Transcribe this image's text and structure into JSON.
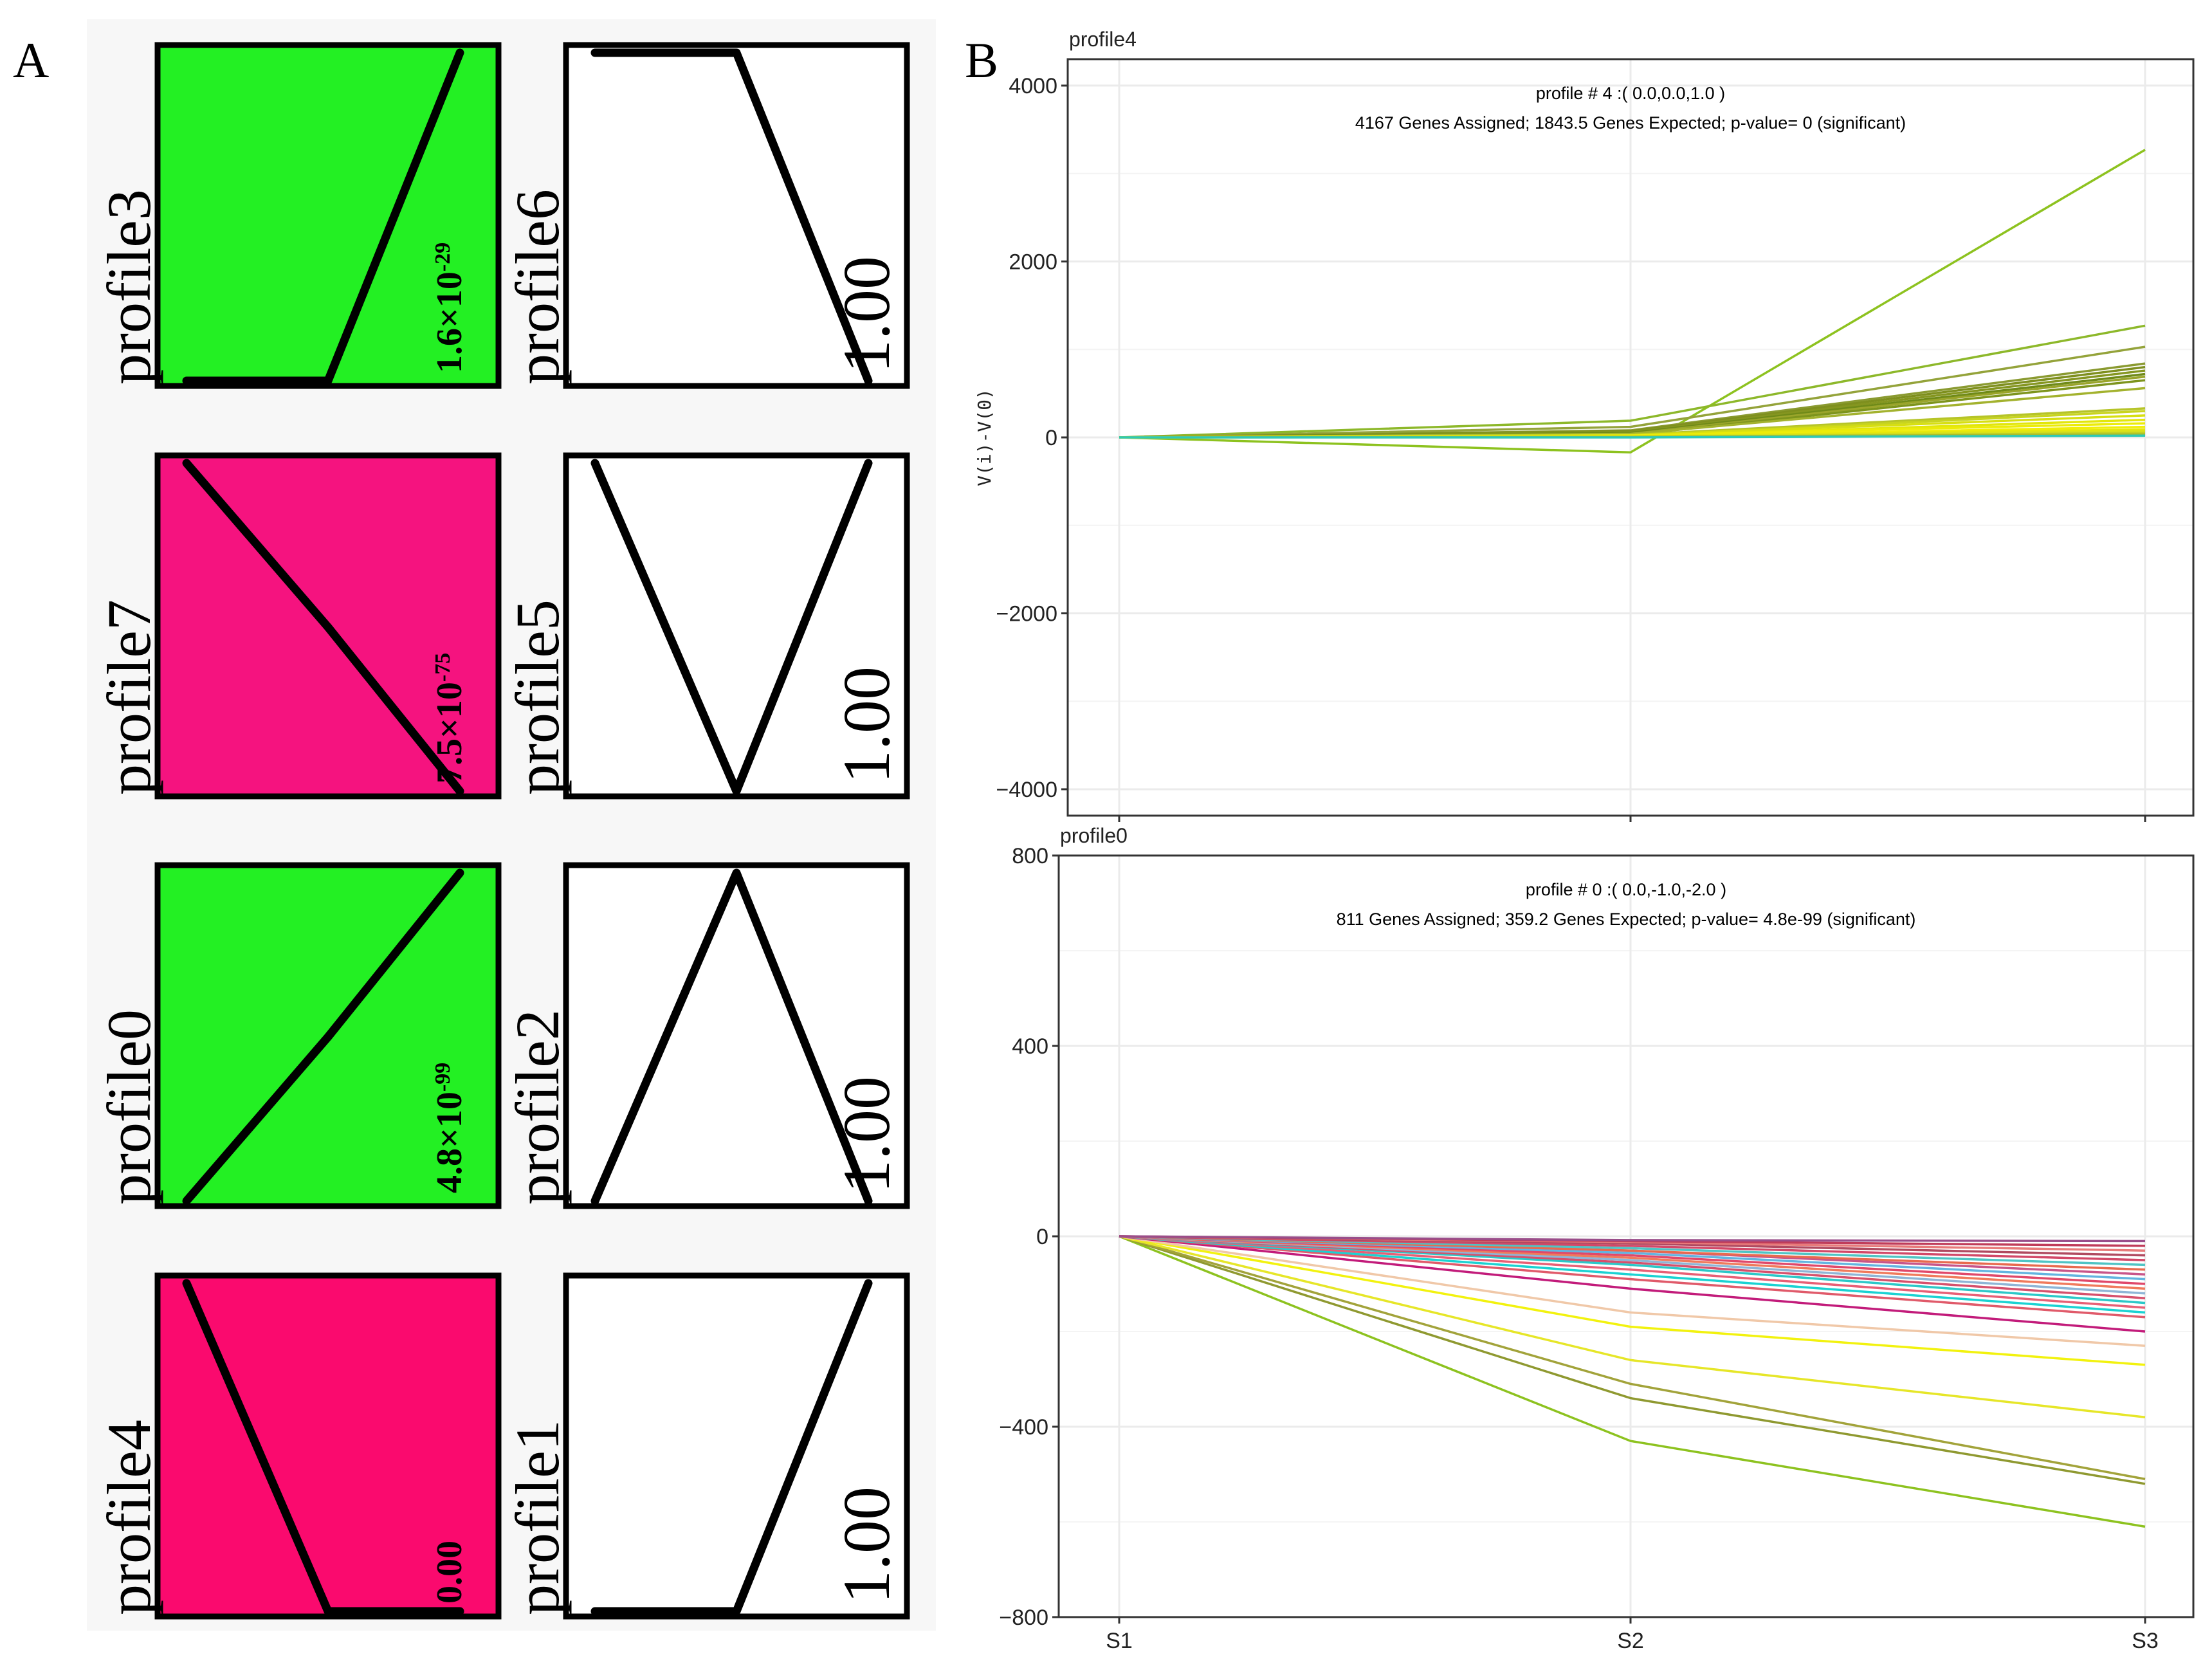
{
  "panel_a": {
    "letter": "A",
    "tiles": [
      {
        "label": "profile3",
        "color": "#23f023",
        "pvalue": "1.6×10",
        "pexp": "-29",
        "shape": [
          0,
          0,
          1
        ]
      },
      {
        "label": "profile6",
        "color": "#ffffff",
        "pvalue": "1.00",
        "pexp": "",
        "shape": [
          1,
          1,
          0
        ]
      },
      {
        "label": "profile7",
        "color": "#f5137f",
        "pvalue": "7.5×10",
        "pexp": "-75",
        "shape": [
          1,
          0.5,
          0
        ]
      },
      {
        "label": "profile5",
        "color": "#ffffff",
        "pvalue": "1.00",
        "pexp": "",
        "shape": [
          1,
          0,
          1
        ]
      },
      {
        "label": "profile0",
        "color": "#23f023",
        "pvalue": "4.8×10",
        "pexp": "-99",
        "shape": [
          0,
          0.5,
          1
        ]
      },
      {
        "label": "profile2",
        "color": "#ffffff",
        "pvalue": "1.00",
        "pexp": "",
        "shape": [
          0,
          1,
          0
        ]
      },
      {
        "label": "profile4",
        "color": "#fa0a6e",
        "pvalue": "0.00",
        "pexp": "",
        "shape": [
          1,
          0,
          0
        ]
      },
      {
        "label": "profile1",
        "color": "#ffffff",
        "pvalue": "1.00",
        "pexp": "",
        "shape": [
          0,
          0,
          1
        ]
      }
    ]
  },
  "panel_b": {
    "letter": "B"
  },
  "chart_data": [
    {
      "type": "line",
      "name": "profile4",
      "title": "profile # 4 :( 0.0,0.0,1.0 )",
      "subtitle": "4167 Genes Assigned; 1843.5 Genes Expected; p-value= 0 (significant)",
      "ylabel": "V(i)-V(0)",
      "x": [
        "S1",
        "S2",
        "S3"
      ],
      "ylim": [
        -4300,
        4300
      ],
      "yticks": [
        4000,
        2000,
        0,
        -2000,
        -4000
      ],
      "ytick_labels": [
        "4000",
        "2000",
        "0",
        "−2000",
        "−4000"
      ],
      "series": [
        {
          "color": "#8dc21f",
          "values": [
            0,
            -170,
            3270
          ]
        },
        {
          "color": "#8db82a",
          "values": [
            0,
            190,
            1270
          ]
        },
        {
          "color": "#94a33a",
          "values": [
            0,
            120,
            1030
          ]
        },
        {
          "color": "#8a9a30",
          "values": [
            0,
            80,
            840
          ]
        },
        {
          "color": "#7e8f1e",
          "values": [
            0,
            70,
            800
          ]
        },
        {
          "color": "#859620",
          "values": [
            0,
            60,
            760
          ]
        },
        {
          "color": "#6f8a18",
          "values": [
            0,
            50,
            720
          ]
        },
        {
          "color": "#9aa52b",
          "values": [
            0,
            40,
            690
          ]
        },
        {
          "color": "#7d941c",
          "values": [
            0,
            30,
            650
          ]
        },
        {
          "color": "#a3b22e",
          "values": [
            0,
            40,
            560
          ]
        },
        {
          "color": "#b6c428",
          "values": [
            0,
            30,
            330
          ]
        },
        {
          "color": "#c8d420",
          "values": [
            0,
            20,
            300
          ]
        },
        {
          "color": "#d7df12",
          "values": [
            0,
            25,
            250
          ]
        },
        {
          "color": "#e2e60b",
          "values": [
            0,
            15,
            200
          ]
        },
        {
          "color": "#ecec08",
          "values": [
            0,
            20,
            160
          ]
        },
        {
          "color": "#f0ee0a",
          "values": [
            0,
            10,
            120
          ]
        },
        {
          "color": "#e6e80a",
          "values": [
            0,
            15,
            90
          ]
        },
        {
          "color": "#d9e21a",
          "values": [
            0,
            10,
            70
          ]
        },
        {
          "color": "#c2d125",
          "values": [
            0,
            5,
            50
          ]
        },
        {
          "color": "#aabd2a",
          "values": [
            0,
            5,
            35
          ]
        },
        {
          "color": "#2fc9b6",
          "values": [
            0,
            0,
            20
          ]
        }
      ]
    },
    {
      "type": "line",
      "name": "profile0",
      "title": "profile # 0 :( 0.0,-1.0,-2.0 )",
      "subtitle": "811 Genes Assigned; 359.2 Genes Expected; p-value= 4.8e-99 (significant)",
      "ylabel": "",
      "x": [
        "S1",
        "S2",
        "S3"
      ],
      "ylim": [
        -800,
        800
      ],
      "yticks": [
        800,
        400,
        0,
        -400,
        -800
      ],
      "ytick_labels": [
        "800",
        "400",
        "0",
        "−400",
        "−800"
      ],
      "series": [
        {
          "color": "#8dc21f",
          "values": [
            0,
            -430,
            -610
          ]
        },
        {
          "color": "#8f9930",
          "values": [
            0,
            -340,
            -520
          ]
        },
        {
          "color": "#a2a33a",
          "values": [
            0,
            -310,
            -510
          ]
        },
        {
          "color": "#e6e628",
          "values": [
            0,
            -260,
            -380
          ]
        },
        {
          "color": "#f2f20e",
          "values": [
            0,
            -190,
            -270
          ]
        },
        {
          "color": "#f0c8a8",
          "values": [
            0,
            -160,
            -230
          ]
        },
        {
          "color": "#c21b7a",
          "values": [
            0,
            -110,
            -200
          ]
        },
        {
          "color": "#e05a6a",
          "values": [
            0,
            -90,
            -170
          ]
        },
        {
          "color": "#1ad2d2",
          "values": [
            0,
            -80,
            -160
          ]
        },
        {
          "color": "#e85f75",
          "values": [
            0,
            -70,
            -150
          ]
        },
        {
          "color": "#2bc8c8",
          "values": [
            0,
            -60,
            -140
          ]
        },
        {
          "color": "#d6506c",
          "values": [
            0,
            -55,
            -130
          ]
        },
        {
          "color": "#8fb5d6",
          "values": [
            0,
            -50,
            -120
          ]
        },
        {
          "color": "#f07a5c",
          "values": [
            0,
            -45,
            -110
          ]
        },
        {
          "color": "#e0486a",
          "values": [
            0,
            -40,
            -100
          ]
        },
        {
          "color": "#63b4e0",
          "values": [
            0,
            -35,
            -90
          ]
        },
        {
          "color": "#c8558a",
          "values": [
            0,
            -30,
            -80
          ]
        },
        {
          "color": "#e86a4e",
          "values": [
            0,
            -30,
            -70
          ]
        },
        {
          "color": "#4fc4c4",
          "values": [
            0,
            -25,
            -60
          ]
        },
        {
          "color": "#d24868",
          "values": [
            0,
            -20,
            -50
          ]
        },
        {
          "color": "#b04a60",
          "values": [
            0,
            -15,
            -40
          ]
        },
        {
          "color": "#e87a7a",
          "values": [
            0,
            -12,
            -30
          ]
        },
        {
          "color": "#c03c5a",
          "values": [
            0,
            -10,
            -20
          ]
        },
        {
          "color": "#9a4e8a",
          "values": [
            0,
            -8,
            -10
          ]
        }
      ]
    }
  ]
}
